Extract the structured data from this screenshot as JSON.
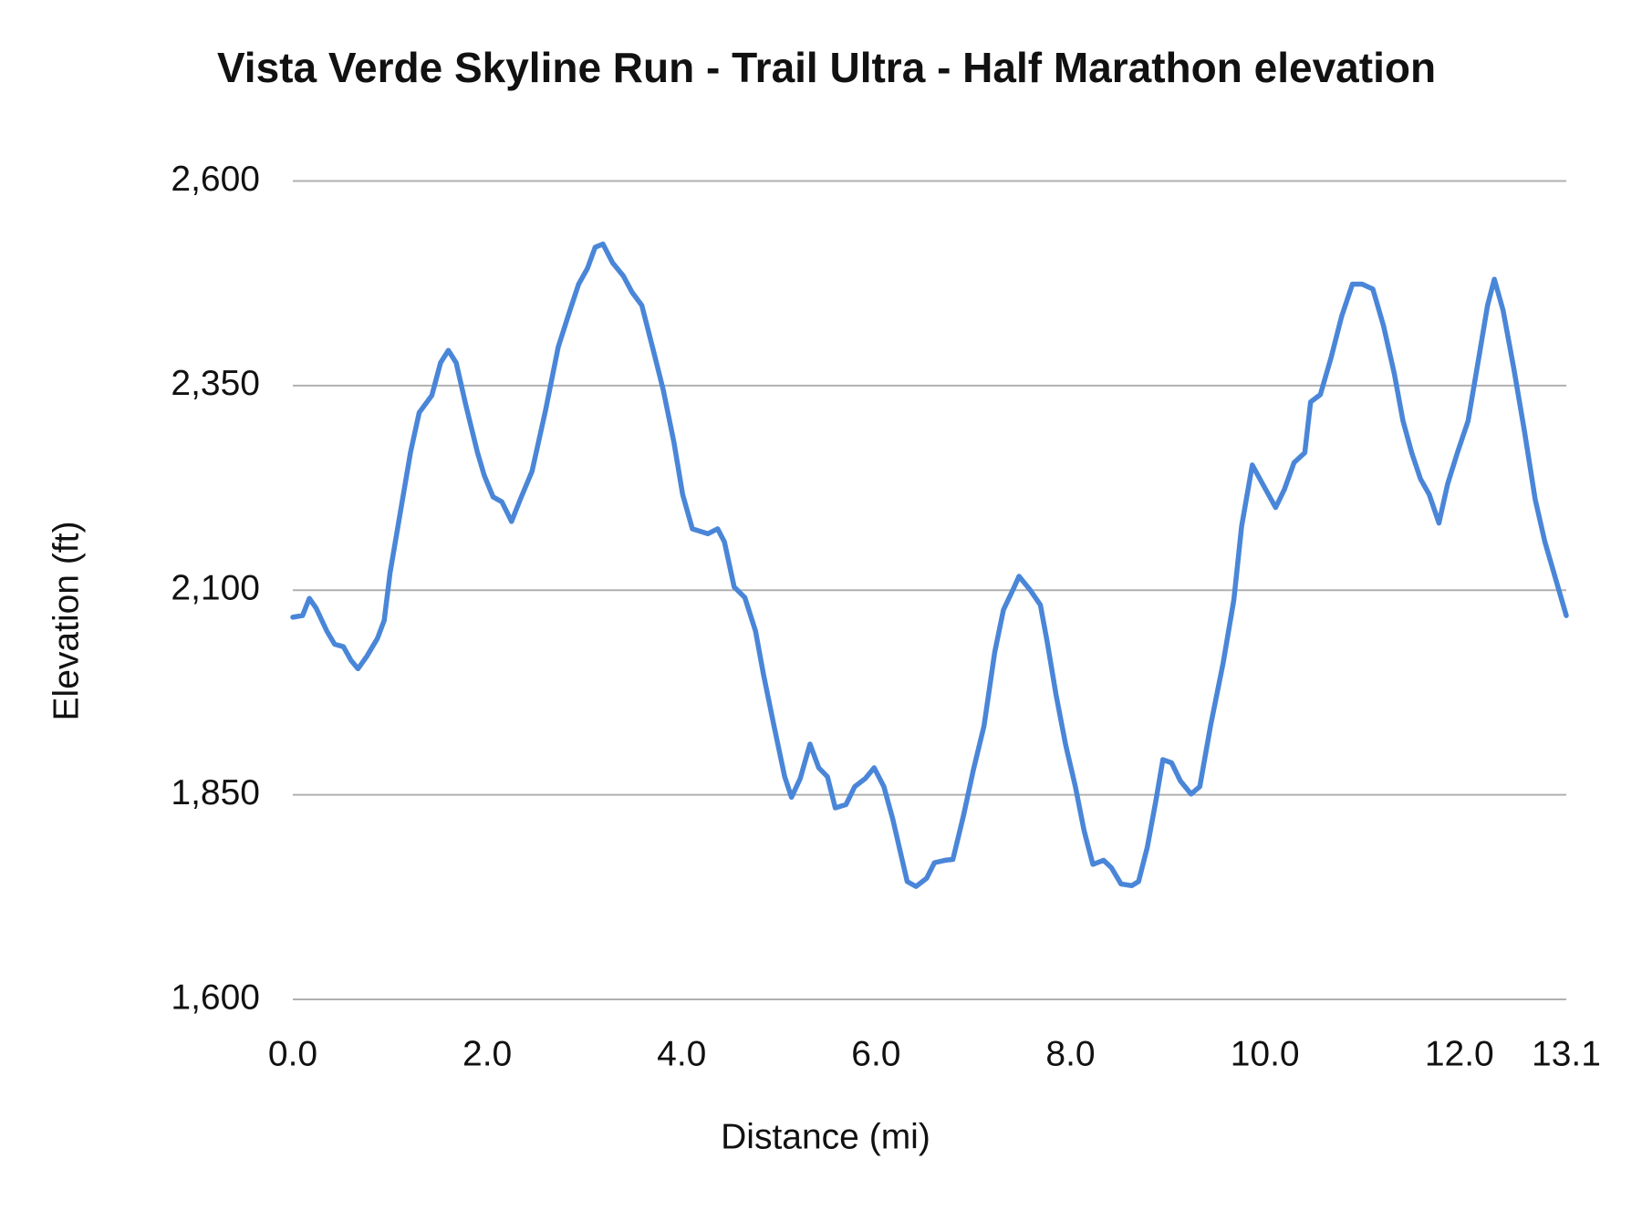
{
  "chart_data": {
    "type": "line",
    "title": "Vista Verde Skyline Run - Trail Ultra - Half Marathon elevation",
    "x_label": "Distance (mi)",
    "y_label": "Elevation (ft)",
    "color": "#4a86d8",
    "grid": true,
    "xlim": [
      0,
      13.1
    ],
    "xticks": [
      {
        "value": 0,
        "label": "0.0"
      },
      {
        "value": 2,
        "label": "2.0"
      },
      {
        "value": 4,
        "label": "4.0"
      },
      {
        "value": 6,
        "label": "6.0"
      },
      {
        "value": 8,
        "label": "8.0"
      },
      {
        "value": 10,
        "label": "10.0"
      },
      {
        "value": 12,
        "label": "12.0"
      },
      13.1
    ],
    "ylim": [
      1600,
      2600
    ],
    "yticks": [
      {
        "value": 1600,
        "label": "1,600"
      },
      {
        "value": 1850,
        "label": "1,850"
      },
      {
        "value": 2100,
        "label": "2,100"
      },
      {
        "value": 2350,
        "label": "2,350"
      },
      {
        "value": 2600,
        "label": "2,600"
      }
    ],
    "x": [
      0,
      0.1,
      0.17,
      0.24,
      0.35,
      0.43,
      0.52,
      0.6,
      0.67,
      0.76,
      0.87,
      0.94,
      1.0,
      1.1,
      1.21,
      1.3,
      1.43,
      1.52,
      1.6,
      1.68,
      1.78,
      1.9,
      1.97,
      2.06,
      2.15,
      2.25,
      2.34,
      2.46,
      2.6,
      2.73,
      2.84,
      2.94,
      3.03,
      3.11,
      3.19,
      3.29,
      3.4,
      3.49,
      3.59,
      3.7,
      3.81,
      3.92,
      4.01,
      4.11,
      4.27,
      4.37,
      4.44,
      4.54,
      4.65,
      4.76,
      4.84,
      4.95,
      5.06,
      5.13,
      5.22,
      5.32,
      5.41,
      5.5,
      5.58,
      5.69,
      5.78,
      5.89,
      5.98,
      6.08,
      6.17,
      6.25,
      6.32,
      6.41,
      6.52,
      6.6,
      6.71,
      6.79,
      6.9,
      7.0,
      7.11,
      7.22,
      7.31,
      7.41,
      7.47,
      7.58,
      7.69,
      7.76,
      7.85,
      7.95,
      8.05,
      8.14,
      8.23,
      8.34,
      8.42,
      8.52,
      8.63,
      8.7,
      8.79,
      8.88,
      8.95,
      9.04,
      9.13,
      9.24,
      9.33,
      9.44,
      9.57,
      9.68,
      9.76,
      9.87,
      9.98,
      10.11,
      10.2,
      10.3,
      10.41,
      10.47,
      10.57,
      10.68,
      10.79,
      10.9,
      11.0,
      11.11,
      11.22,
      11.33,
      11.42,
      11.51,
      11.6,
      11.69,
      11.79,
      11.88,
      11.98,
      12.09,
      12.2,
      12.29,
      12.36,
      12.45,
      12.56,
      12.67,
      12.78,
      12.88,
      12.99,
      13.1
    ],
    "values": [
      2067,
      2069,
      2090,
      2078,
      2050,
      2034,
      2031,
      2014,
      2004,
      2019,
      2041,
      2063,
      2121,
      2191,
      2268,
      2317,
      2338,
      2378,
      2393,
      2378,
      2326,
      2268,
      2240,
      2214,
      2208,
      2184,
      2211,
      2245,
      2320,
      2397,
      2438,
      2474,
      2493,
      2519,
      2523,
      2500,
      2484,
      2464,
      2448,
      2397,
      2345,
      2281,
      2217,
      2175,
      2169,
      2175,
      2159,
      2104,
      2091,
      2050,
      1998,
      1934,
      1872,
      1847,
      1870,
      1912,
      1883,
      1872,
      1834,
      1838,
      1860,
      1870,
      1883,
      1860,
      1821,
      1780,
      1744,
      1738,
      1748,
      1767,
      1770,
      1771,
      1825,
      1880,
      1934,
      2024,
      2076,
      2101,
      2117,
      2101,
      2082,
      2037,
      1973,
      1911,
      1860,
      1806,
      1765,
      1770,
      1761,
      1741,
      1739,
      1744,
      1786,
      1844,
      1893,
      1889,
      1867,
      1851,
      1860,
      1934,
      2011,
      2088,
      2178,
      2253,
      2229,
      2201,
      2223,
      2256,
      2268,
      2330,
      2339,
      2384,
      2435,
      2474,
      2474,
      2468,
      2423,
      2365,
      2307,
      2268,
      2236,
      2217,
      2182,
      2230,
      2268,
      2307,
      2384,
      2448,
      2480,
      2442,
      2371,
      2294,
      2211,
      2159,
      2114,
      2069
    ]
  }
}
